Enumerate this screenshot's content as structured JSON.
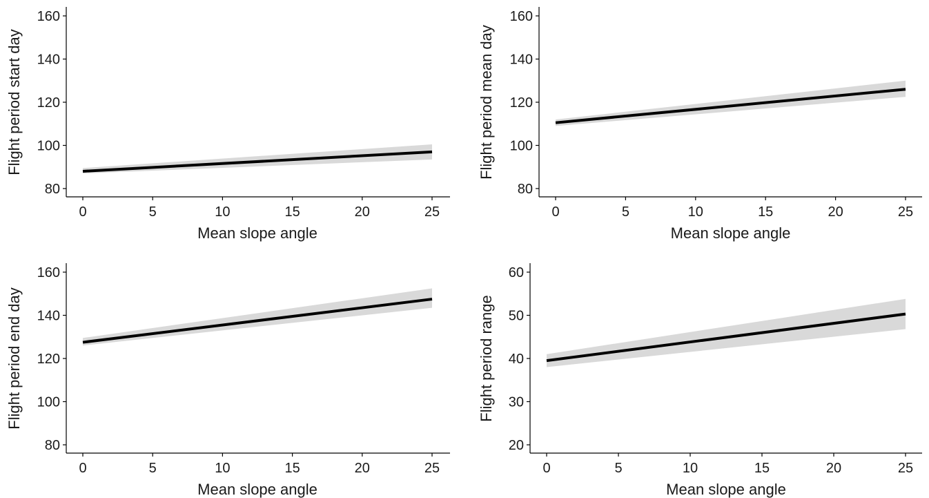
{
  "chart_data": [
    {
      "type": "line",
      "xlabel": "Mean slope angle",
      "ylabel": "Flight period start day",
      "xlim": [
        0,
        25
      ],
      "ylim": [
        80,
        160
      ],
      "xticks": [
        0,
        5,
        10,
        15,
        20,
        25
      ],
      "yticks": [
        80,
        100,
        120,
        140,
        160
      ],
      "grid": false,
      "series": [
        {
          "x": [
            0,
            25
          ],
          "y": [
            88,
            97
          ],
          "ci_low": [
            87,
            93.5
          ],
          "ci_high": [
            89.5,
            100.5
          ]
        }
      ]
    },
    {
      "type": "line",
      "xlabel": "Mean slope angle",
      "ylabel": "Flight period mean day",
      "xlim": [
        0,
        25
      ],
      "ylim": [
        80,
        160
      ],
      "xticks": [
        0,
        5,
        10,
        15,
        20,
        25
      ],
      "yticks": [
        80,
        100,
        120,
        140,
        160
      ],
      "grid": false,
      "series": [
        {
          "x": [
            0,
            25
          ],
          "y": [
            110.5,
            126
          ],
          "ci_low": [
            109,
            122.5
          ],
          "ci_high": [
            112,
            130
          ]
        }
      ]
    },
    {
      "type": "line",
      "xlabel": "Mean slope angle",
      "ylabel": "Flight period end day",
      "xlim": [
        0,
        25
      ],
      "ylim": [
        80,
        160
      ],
      "xticks": [
        0,
        5,
        10,
        15,
        20,
        25
      ],
      "yticks": [
        80,
        100,
        120,
        140,
        160
      ],
      "grid": false,
      "series": [
        {
          "x": [
            0,
            25
          ],
          "y": [
            127.5,
            147.5
          ],
          "ci_low": [
            126,
            143.5
          ],
          "ci_high": [
            129.5,
            152.5
          ]
        }
      ]
    },
    {
      "type": "line",
      "xlabel": "Mean slope angle",
      "ylabel": "Flight period range",
      "xlim": [
        0,
        25
      ],
      "ylim": [
        20,
        60
      ],
      "xticks": [
        0,
        5,
        10,
        15,
        20,
        25
      ],
      "yticks": [
        20,
        30,
        40,
        50,
        60
      ],
      "grid": false,
      "series": [
        {
          "x": [
            0,
            25
          ],
          "y": [
            39.5,
            50.3
          ],
          "ci_low": [
            38,
            46.8
          ],
          "ci_high": [
            41,
            53.8
          ]
        }
      ]
    }
  ],
  "colors": {
    "line": "#000000",
    "ribbon": "#d9d9d9",
    "axis": "#000000"
  }
}
